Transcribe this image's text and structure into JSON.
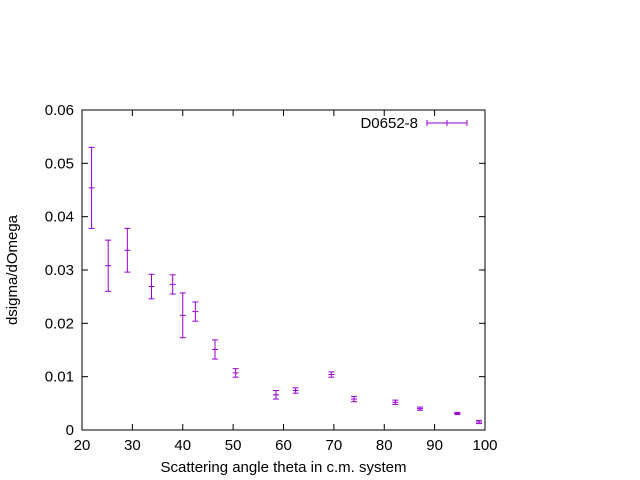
{
  "chart_data": {
    "type": "scatter",
    "xlabel": "Scattering angle theta in c.m. system",
    "ylabel": "dsigma/dOmega",
    "xlim": [
      20,
      100
    ],
    "ylim": [
      0,
      0.06
    ],
    "x_ticks": [
      20,
      30,
      40,
      50,
      60,
      70,
      80,
      90,
      100
    ],
    "y_ticks": [
      0,
      0.01,
      0.02,
      0.03,
      0.04,
      0.05,
      0.06
    ],
    "x_tick_labels": [
      "20",
      "30",
      "40",
      "50",
      "60",
      "70",
      "80",
      "90",
      "100"
    ],
    "y_tick_labels": [
      "0",
      "0.01",
      "0.02",
      "0.03",
      "0.04",
      "0.05",
      "0.06"
    ],
    "grid": false,
    "legend_position": "top-right",
    "series": [
      {
        "name": "D0652-8",
        "color": "#9400d3",
        "style": "errorbars",
        "points": [
          {
            "x": 21.9,
            "y": 0.0454,
            "err": 0.0076
          },
          {
            "x": 25.2,
            "y": 0.0308,
            "err": 0.0048
          },
          {
            "x": 29.0,
            "y": 0.0337,
            "err": 0.0041
          },
          {
            "x": 33.8,
            "y": 0.0269,
            "err": 0.0023
          },
          {
            "x": 38.0,
            "y": 0.0273,
            "err": 0.0018
          },
          {
            "x": 40.0,
            "y": 0.0215,
            "err": 0.0042
          },
          {
            "x": 42.5,
            "y": 0.0222,
            "err": 0.0018
          },
          {
            "x": 46.4,
            "y": 0.0151,
            "err": 0.0018
          },
          {
            "x": 50.5,
            "y": 0.0107,
            "err": 0.0008
          },
          {
            "x": 58.5,
            "y": 0.0066,
            "err": 0.0008
          },
          {
            "x": 62.4,
            "y": 0.0074,
            "err": 0.0005
          },
          {
            "x": 69.5,
            "y": 0.0104,
            "err": 0.0005
          },
          {
            "x": 74.0,
            "y": 0.0058,
            "err": 0.0005
          },
          {
            "x": 82.2,
            "y": 0.0052,
            "err": 0.0004
          },
          {
            "x": 87.1,
            "y": 0.004,
            "err": 0.0003
          },
          {
            "x": 94.5,
            "y": 0.0031,
            "err": 0.0002
          },
          {
            "x": 98.8,
            "y": 0.0015,
            "err": 0.0003
          }
        ]
      }
    ]
  }
}
